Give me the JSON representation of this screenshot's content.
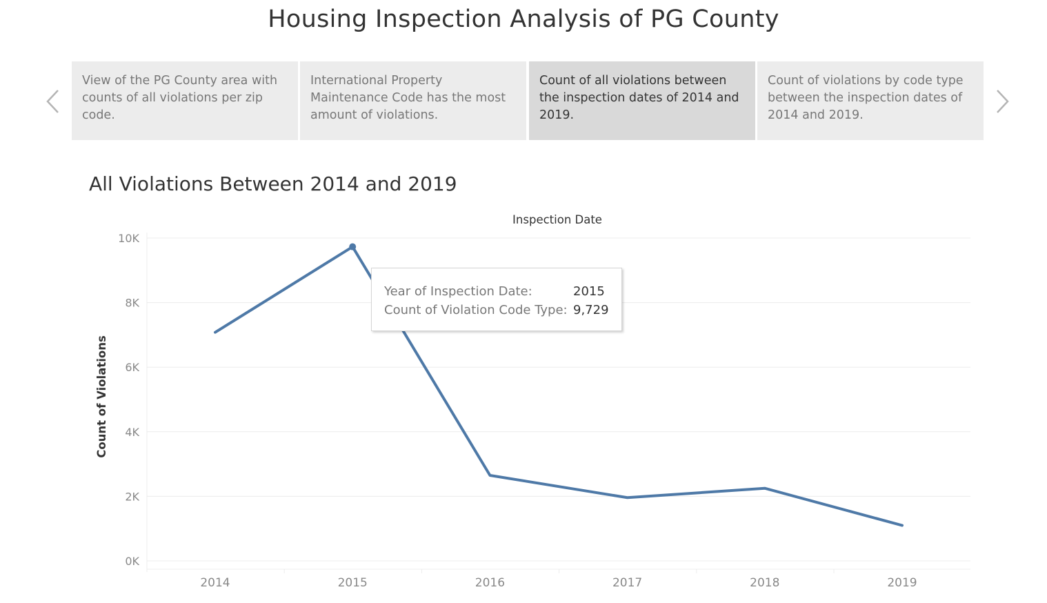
{
  "page": {
    "title": "Housing Inspection Analysis of PG County"
  },
  "story": {
    "prev_icon": "chevron-left-icon",
    "next_icon": "chevron-right-icon",
    "points": [
      {
        "caption": "View of the PG County area with counts of all violations per zip code."
      },
      {
        "caption": "International Property Maintenance Code has the most amount of violations."
      },
      {
        "caption": "Count of all violations between the inspection dates of 2014 and 2019."
      },
      {
        "caption": "Count of violations by code type between the inspection dates of 2014 and 2019."
      }
    ],
    "active_index": 2
  },
  "sheet": {
    "title": "All Violations Between 2014 and 2019"
  },
  "tooltip": {
    "rows": [
      {
        "label": "Year of Inspection Date:",
        "value": "2015"
      },
      {
        "label": "Count of Violation Code Type:",
        "value": "9,729"
      }
    ]
  },
  "colors": {
    "line": "#4e79a7",
    "grid": "#ececec",
    "axis_text": "#888888",
    "title_text": "#333333"
  },
  "chart_data": {
    "type": "line",
    "title": "All Violations Between 2014 and 2019",
    "x_header": "Inspection Date",
    "ylabel": "Count of Violations",
    "categories": [
      "2014",
      "2015",
      "2016",
      "2017",
      "2018",
      "2019"
    ],
    "series": [
      {
        "values": [
          7080,
          9729,
          2650,
          1960,
          2250,
          1100
        ]
      }
    ],
    "ylim": [
      0,
      10000
    ],
    "yticks": [
      0,
      2000,
      4000,
      6000,
      8000,
      10000
    ],
    "ytick_labels": [
      "0K",
      "2K",
      "4K",
      "6K",
      "8K",
      "10K"
    ],
    "highlighted_category": "2015",
    "grid": true,
    "legend": "none"
  }
}
